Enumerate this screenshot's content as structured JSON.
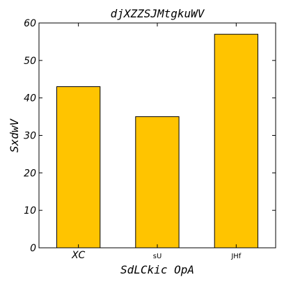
{
  "colors": {
    "bar": "#ffc400",
    "bar_edge": "#000000",
    "background": "#ffffff"
  },
  "chart_data": {
    "type": "bar",
    "title": "djXZZSJMtgkuWV",
    "xlabel": "SdLCkic OpA",
    "ylabel": "SxdwV",
    "categories": [
      "XC",
      "sU",
      "JHf"
    ],
    "values": [
      43,
      35,
      57
    ],
    "ylim": [
      0,
      60
    ],
    "yticks": [
      0,
      10,
      20,
      30,
      40,
      50,
      60
    ],
    "ytick_labels": [
      "0",
      "10",
      "20",
      "30",
      "40",
      "50",
      "60"
    ],
    "grid": false,
    "legend": "none"
  }
}
